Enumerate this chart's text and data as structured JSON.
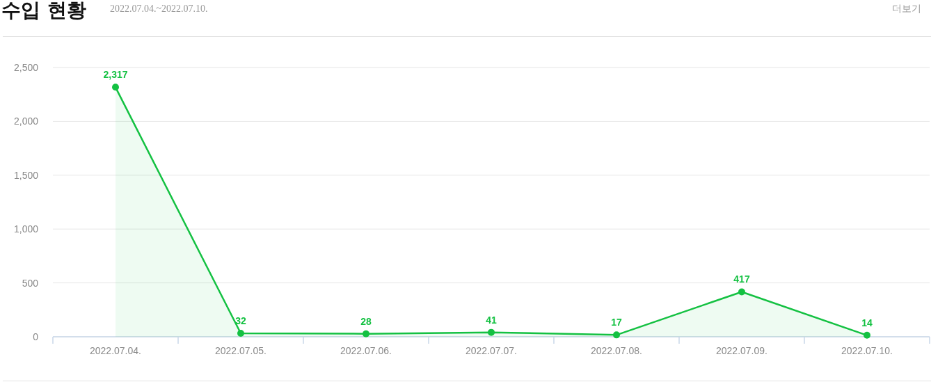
{
  "chart_data": {
    "type": "area",
    "title": "수입 현황",
    "subtitle": "2022.07.04.~2022.07.10.",
    "annotations": [
      "더보기"
    ],
    "categories": [
      "2022.07.04.",
      "2022.07.05.",
      "2022.07.06.",
      "2022.07.07.",
      "2022.07.08.",
      "2022.07.09.",
      "2022.07.10."
    ],
    "series": [
      {
        "color": "#14c142",
        "values": [
          2317,
          32,
          28,
          41,
          17,
          417,
          14
        ],
        "value_labels": [
          "2,317",
          "32",
          "28",
          "41",
          "17",
          "417",
          "14"
        ]
      }
    ],
    "ylim": [
      0,
      2500
    ],
    "yticks": [
      0,
      {
        "value": 500,
        "label": "500"
      },
      {
        "value": 1000,
        "label": "1,000"
      },
      {
        "value": 1500,
        "label": "1,500"
      },
      {
        "value": 2000,
        "label": "2,000"
      },
      {
        "value": 2500,
        "label": "2,500"
      }
    ],
    "grid": "y",
    "marker": "circle"
  }
}
